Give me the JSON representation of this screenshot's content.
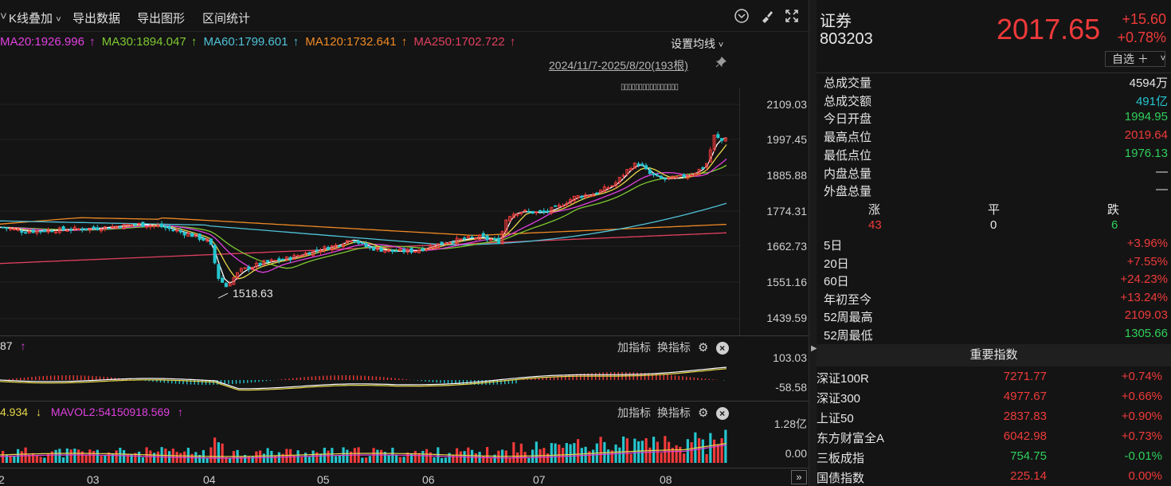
{
  "toolbar": {
    "kline_overlay": "K线叠加",
    "export_data": "导出数据",
    "export_chart": "导出图形",
    "range_stats": "区间统计"
  },
  "ma_legend": [
    {
      "text": "MA20:1926.996",
      "arrow": "↑",
      "color": "#e040e0"
    },
    {
      "text": "MA30:1894.047",
      "arrow": "↑",
      "color": "#7ec832"
    },
    {
      "text": "MA60:1799.601",
      "arrow": "↑",
      "color": "#4fc3d9"
    },
    {
      "text": "MA120:1732.641",
      "arrow": "↑",
      "color": "#f08a24"
    },
    {
      "text": "MA250:1702.722",
      "arrow": "↑",
      "color": "#e04060"
    }
  ],
  "ma_settings": "设置均线",
  "date_range": "2024/11/7-2025/8/20(193根)",
  "main_y_labels": [
    "2109.03",
    "1997.45",
    "1885.88",
    "1774.31",
    "1662.73",
    "1551.16",
    "1439.59"
  ],
  "low_marker": "1518.63",
  "macd": {
    "value_text": "87",
    "arrow": "↑",
    "add_indicator": "加指标",
    "switch_indicator": "换指标",
    "y_top": "103.03",
    "y_bottom": "-58.58"
  },
  "vol": {
    "mavol1_text": "4.934",
    "mavol1_arrow": "↓",
    "mavol2_text": "MAVOL2:54150918.569",
    "mavol2_arrow": "↑",
    "add_indicator": "加指标",
    "switch_indicator": "换指标",
    "y_top": "1.28亿",
    "y_bottom": "0.00"
  },
  "x_labels": [
    "2",
    "03",
    "04",
    "05",
    "06",
    "07",
    "08"
  ],
  "quote": {
    "name": "证券",
    "code": "803203",
    "price": "2017.65",
    "change": "+15.60",
    "change_pct": "+0.78%",
    "watchlist": "自选 ＋"
  },
  "stats": [
    {
      "label": "总成交量",
      "value": "4594万",
      "color": "white"
    },
    {
      "label": "总成交额",
      "value": "491亿",
      "color": "cyan"
    },
    {
      "label": "今日开盘",
      "value": "1994.95",
      "color": "green"
    },
    {
      "label": "最高点位",
      "value": "2019.64",
      "color": "red"
    },
    {
      "label": "最低点位",
      "value": "1976.13",
      "color": "green"
    },
    {
      "label": "内盘总量",
      "value": "—",
      "color": "white"
    },
    {
      "label": "外盘总量",
      "value": "—",
      "color": "white"
    }
  ],
  "breadth": {
    "up_label": "涨",
    "flat_label": "平",
    "down_label": "跌",
    "up": "43",
    "flat": "0",
    "down": "6"
  },
  "period_returns": [
    {
      "label": "5日",
      "value": "+3.96%",
      "color": "red"
    },
    {
      "label": "20日",
      "value": "+7.55%",
      "color": "red"
    },
    {
      "label": "60日",
      "value": "+24.23%",
      "color": "red"
    },
    {
      "label": "年初至今",
      "value": "+13.24%",
      "color": "red"
    },
    {
      "label": "52周最高",
      "value": "2109.03",
      "color": "red"
    },
    {
      "label": "52周最低",
      "value": "1305.66",
      "color": "green"
    }
  ],
  "indices_title": "重要指数",
  "indices": [
    {
      "name": "深证100R",
      "value": "7271.77",
      "pct": "+0.74%",
      "color": "red"
    },
    {
      "name": "深证300",
      "value": "4977.67",
      "pct": "+0.66%",
      "color": "red"
    },
    {
      "name": "上证50",
      "value": "2837.83",
      "pct": "+0.90%",
      "color": "red"
    },
    {
      "name": "东方财富全A",
      "value": "6042.98",
      "pct": "+0.73%",
      "color": "red"
    },
    {
      "name": "三板成指",
      "value": "754.75",
      "pct": "-0.01%",
      "color": "green"
    },
    {
      "name": "国债指数",
      "value": "225.14",
      "pct": "0.00%",
      "color": "red"
    }
  ],
  "colors": {
    "up": "#f03a3a",
    "down": "#25c6cf",
    "green": "#2fcf5a",
    "background": "#141414"
  }
}
